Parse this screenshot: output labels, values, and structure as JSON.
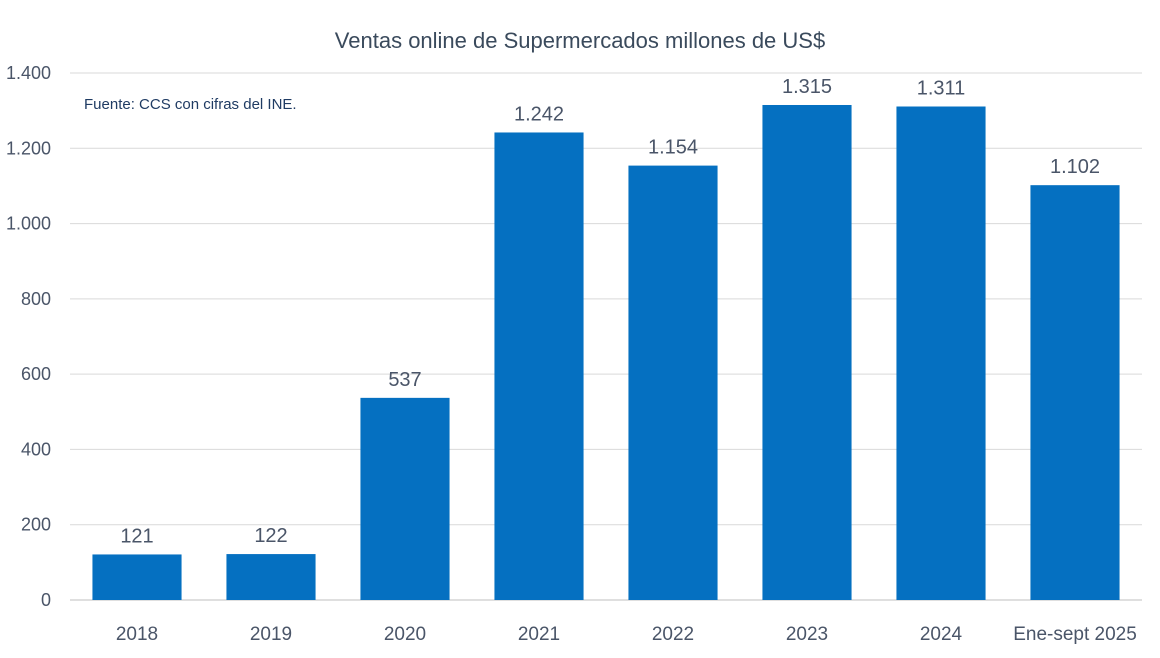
{
  "chart_data": {
    "type": "bar",
    "title": "Ventas online de Supermercados millones de US$",
    "annotation": "Fuente: CCS con cifras del INE.",
    "categories": [
      "2018",
      "2019",
      "2020",
      "2021",
      "2022",
      "2023",
      "2024",
      "Ene-sept 2025"
    ],
    "values": [
      121,
      122,
      537,
      1242,
      1154,
      1315,
      1311,
      1102
    ],
    "value_labels": [
      "121",
      "122",
      "537",
      "1.242",
      "1.154",
      "1.315",
      "1.311",
      "1.102"
    ],
    "ylim": [
      0,
      1400
    ],
    "yticks": [
      0,
      200,
      400,
      600,
      800,
      1000,
      1200,
      1400
    ],
    "ytick_labels": [
      "0",
      "200",
      "400",
      "600",
      "800",
      "1.000",
      "1.200",
      "1.400"
    ],
    "xlabel": "",
    "ylabel": "",
    "grid": true,
    "legend": "none",
    "bar_color": "#0570c1"
  }
}
